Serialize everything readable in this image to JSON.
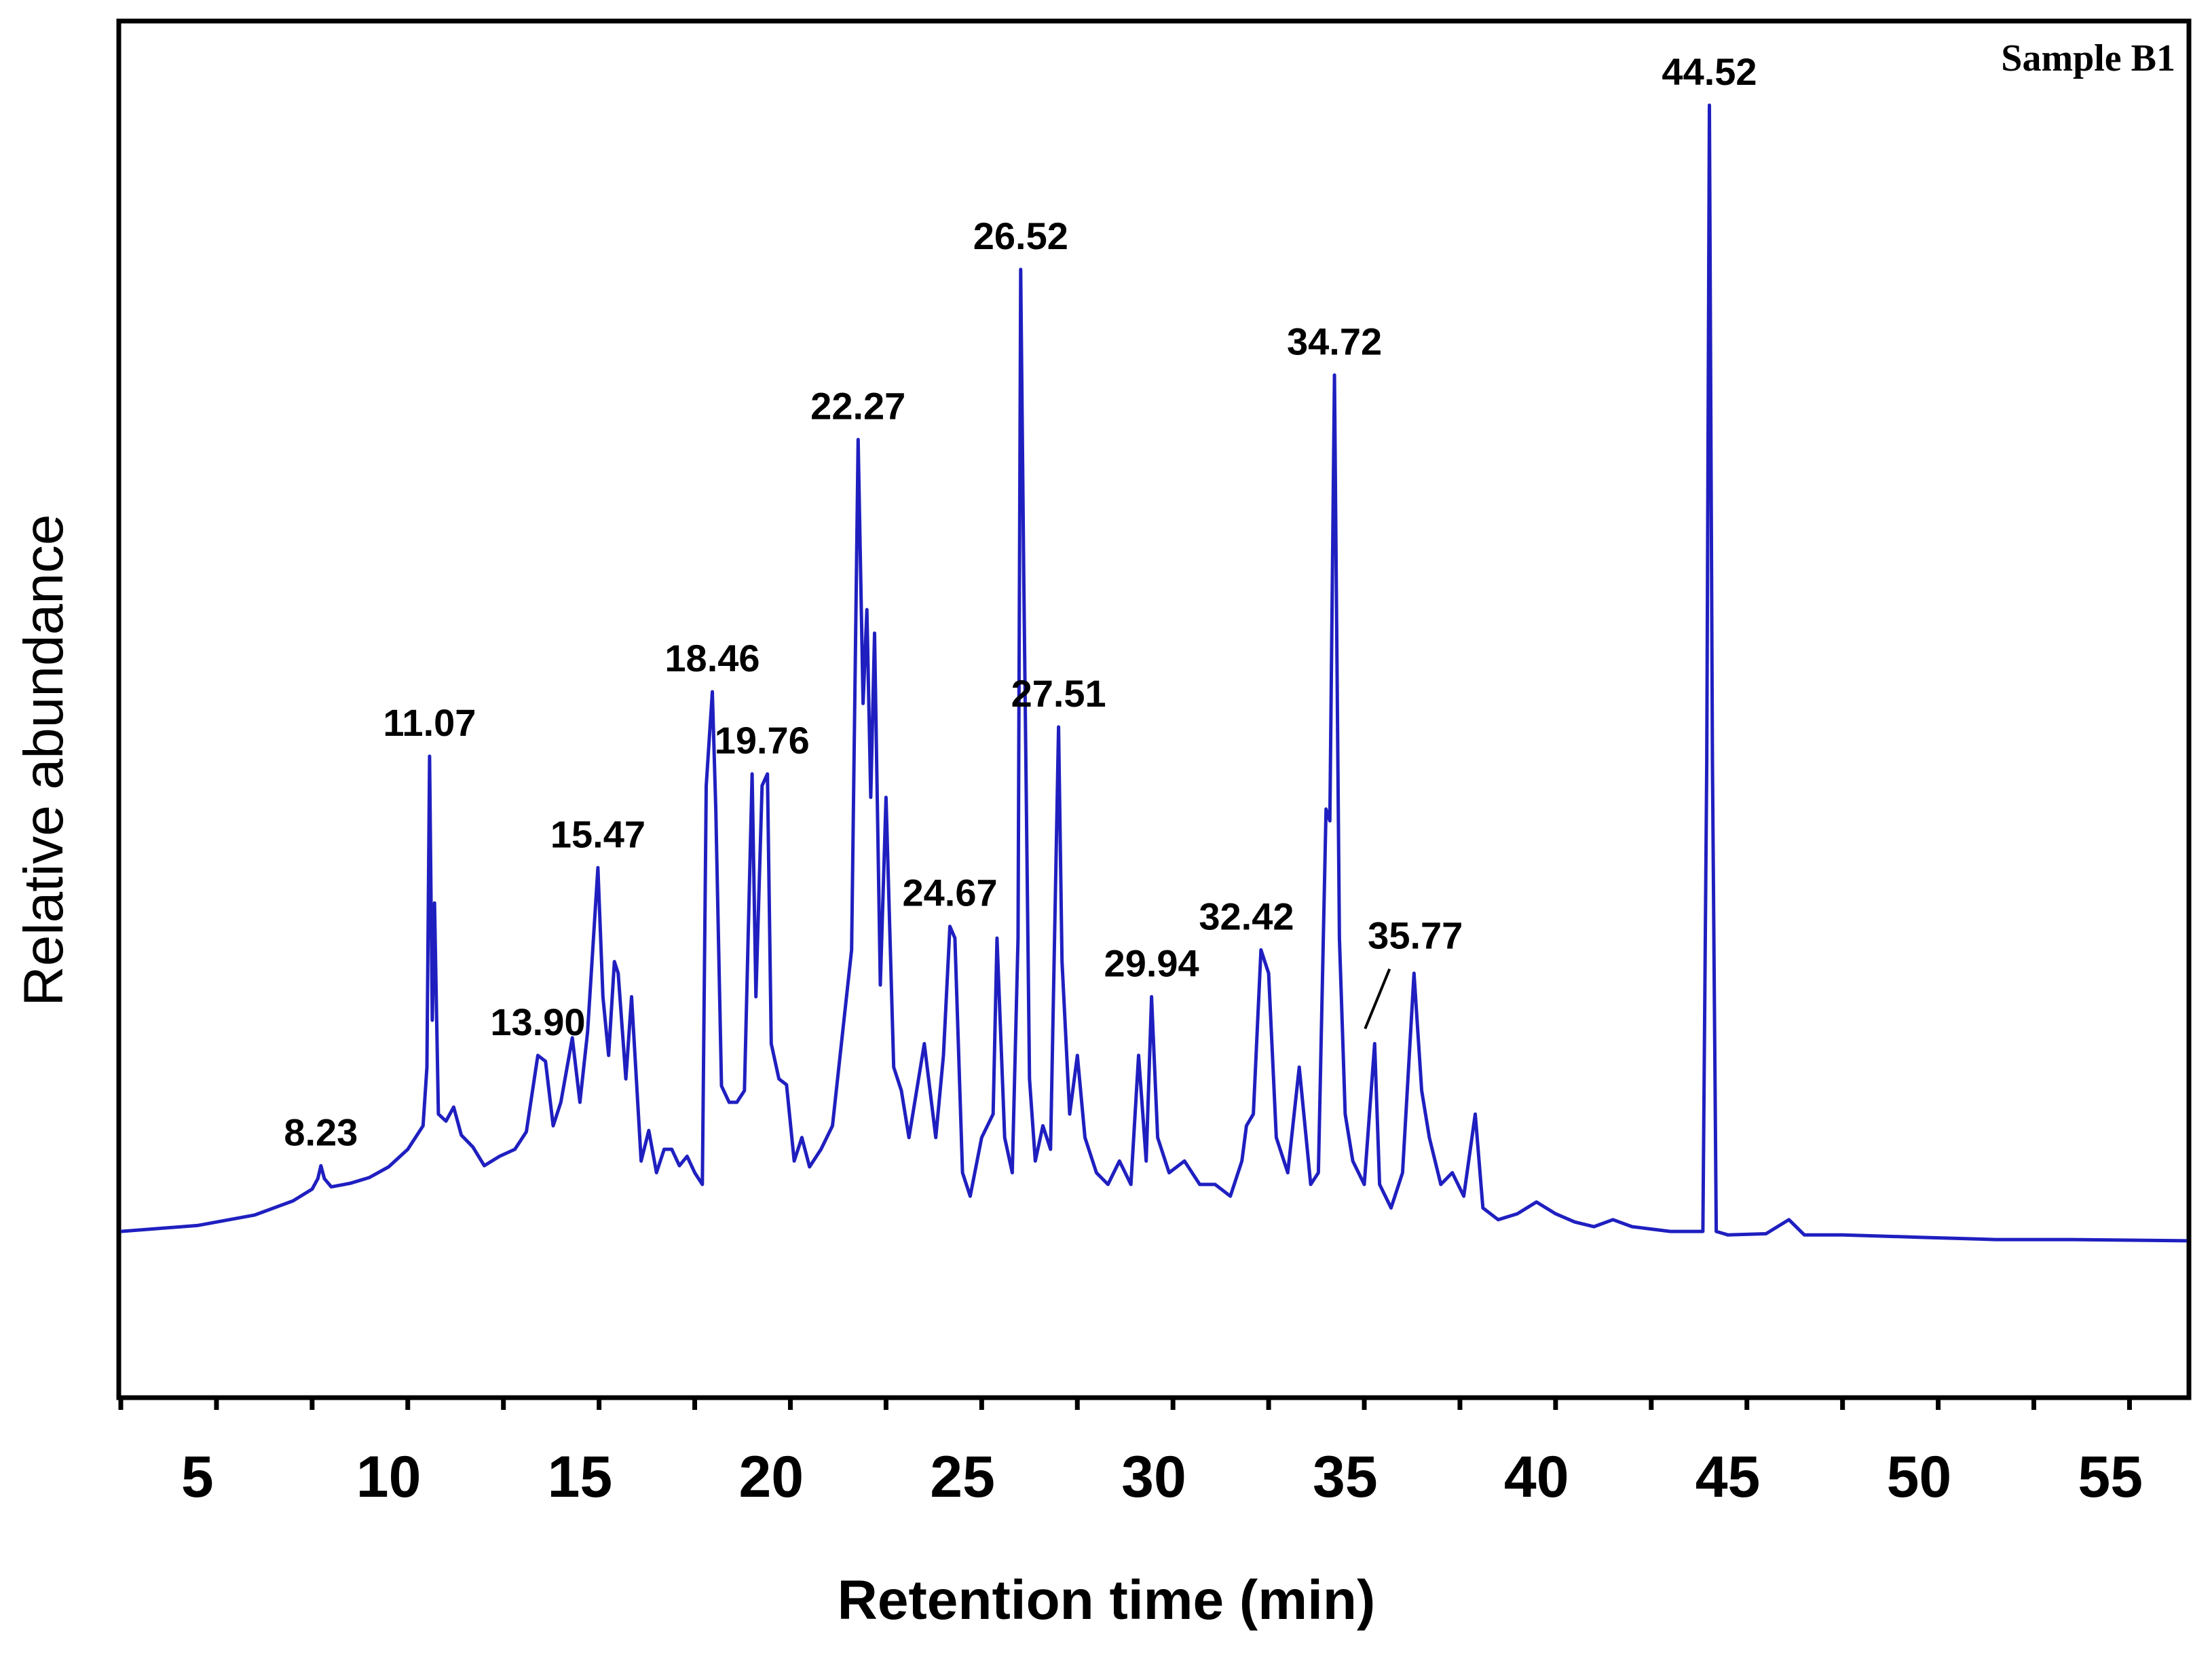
{
  "chart_data": {
    "type": "line",
    "title": "Sample B1",
    "xlabel": "Retention time (min)",
    "ylabel": "Relative abundance",
    "xlim": [
      3,
      57
    ],
    "ylim": [
      -0.14,
      1.03
    ],
    "x_ticks": [
      5,
      10,
      15,
      20,
      25,
      30,
      35,
      40,
      45,
      50,
      55
    ],
    "x_tick_labels": [
      "5",
      "10",
      "15",
      "20",
      "25",
      "30",
      "35",
      "40",
      "45",
      "50",
      "55"
    ],
    "line_color": "#1f1fc0",
    "series": [
      {
        "name": "Sample B1",
        "x": [
          3.0,
          5.0,
          6.5,
          7.5,
          8.0,
          8.15,
          8.23,
          8.32,
          8.5,
          9.0,
          9.5,
          10.0,
          10.5,
          10.9,
          11.0,
          11.07,
          11.14,
          11.2,
          11.3,
          11.5,
          11.7,
          11.9,
          12.2,
          12.5,
          12.9,
          13.3,
          13.6,
          13.9,
          14.1,
          14.3,
          14.5,
          14.8,
          15.0,
          15.2,
          15.47,
          15.6,
          15.75,
          15.9,
          16.0,
          16.2,
          16.35,
          16.6,
          16.8,
          17.0,
          17.2,
          17.4,
          17.6,
          17.8,
          18.0,
          18.2,
          18.3,
          18.46,
          18.55,
          18.7,
          18.9,
          19.1,
          19.3,
          19.5,
          19.6,
          19.76,
          19.9,
          20.0,
          20.2,
          20.4,
          20.6,
          20.8,
          21.0,
          21.3,
          21.6,
          21.9,
          22.1,
          22.27,
          22.4,
          22.5,
          22.6,
          22.7,
          22.85,
          23.0,
          23.2,
          23.4,
          23.6,
          23.8,
          24.0,
          24.3,
          24.5,
          24.67,
          24.8,
          25.0,
          25.2,
          25.5,
          25.8,
          25.9,
          26.1,
          26.3,
          26.45,
          26.52,
          26.6,
          26.75,
          26.9,
          27.1,
          27.3,
          27.51,
          27.6,
          27.8,
          28.0,
          28.2,
          28.5,
          28.8,
          29.1,
          29.4,
          29.6,
          29.8,
          29.94,
          30.1,
          30.4,
          30.8,
          31.2,
          31.6,
          32.0,
          32.3,
          32.42,
          32.6,
          32.8,
          33.0,
          33.2,
          33.5,
          33.8,
          34.1,
          34.3,
          34.5,
          34.6,
          34.72,
          34.85,
          35.0,
          35.2,
          35.5,
          35.77,
          35.9,
          36.2,
          36.5,
          36.8,
          37.0,
          37.2,
          37.5,
          37.8,
          38.1,
          38.4,
          38.6,
          39.0,
          39.5,
          40.0,
          40.5,
          41.0,
          41.5,
          42.0,
          42.5,
          43.0,
          43.5,
          44.0,
          44.35,
          44.45,
          44.52,
          44.6,
          44.7,
          45.0,
          46.0,
          46.6,
          47.0,
          48.0,
          50.0,
          52.0,
          54.0,
          57.0
        ],
        "y": [
          0.0,
          0.005,
          0.014,
          0.026,
          0.036,
          0.045,
          0.056,
          0.045,
          0.038,
          0.041,
          0.046,
          0.055,
          0.07,
          0.09,
          0.14,
          0.405,
          0.18,
          0.28,
          0.1,
          0.094,
          0.106,
          0.082,
          0.072,
          0.056,
          0.064,
          0.07,
          0.085,
          0.15,
          0.145,
          0.09,
          0.11,
          0.165,
          0.11,
          0.17,
          0.31,
          0.2,
          0.15,
          0.23,
          0.22,
          0.13,
          0.2,
          0.06,
          0.086,
          0.05,
          0.07,
          0.07,
          0.056,
          0.064,
          0.05,
          0.04,
          0.38,
          0.46,
          0.36,
          0.124,
          0.11,
          0.11,
          0.12,
          0.39,
          0.2,
          0.38,
          0.39,
          0.16,
          0.13,
          0.125,
          0.06,
          0.08,
          0.055,
          0.07,
          0.09,
          0.18,
          0.24,
          0.675,
          0.45,
          0.53,
          0.37,
          0.51,
          0.21,
          0.37,
          0.14,
          0.12,
          0.08,
          0.12,
          0.16,
          0.08,
          0.15,
          0.26,
          0.25,
          0.05,
          0.03,
          0.08,
          0.1,
          0.25,
          0.08,
          0.05,
          0.25,
          0.82,
          0.56,
          0.13,
          0.06,
          0.09,
          0.07,
          0.43,
          0.23,
          0.1,
          0.15,
          0.08,
          0.05,
          0.04,
          0.06,
          0.04,
          0.15,
          0.06,
          0.2,
          0.08,
          0.05,
          0.06,
          0.04,
          0.04,
          0.03,
          0.06,
          0.09,
          0.1,
          0.24,
          0.22,
          0.08,
          0.05,
          0.14,
          0.04,
          0.05,
          0.36,
          0.35,
          0.73,
          0.25,
          0.1,
          0.06,
          0.04,
          0.16,
          0.04,
          0.02,
          0.05,
          0.22,
          0.12,
          0.08,
          0.04,
          0.05,
          0.03,
          0.1,
          0.02,
          0.01,
          0.015,
          0.025,
          0.015,
          0.008,
          0.004,
          0.01,
          0.004,
          0.002,
          0.0,
          0.0,
          0.0,
          0.4,
          0.96,
          0.4,
          0.0,
          -0.003,
          -0.002,
          0.01,
          -0.003,
          -0.003,
          -0.005,
          -0.007,
          -0.007,
          -0.008
        ]
      }
    ],
    "peak_labels": [
      {
        "x": 8.23,
        "y": 0.056,
        "text": "8.23"
      },
      {
        "x": 11.07,
        "y": 0.405,
        "text": "11.07"
      },
      {
        "x": 13.9,
        "y": 0.15,
        "text": "13.90"
      },
      {
        "x": 15.47,
        "y": 0.31,
        "text": "15.47"
      },
      {
        "x": 18.46,
        "y": 0.46,
        "text": "18.46"
      },
      {
        "x": 19.76,
        "y": 0.39,
        "text": "19.76"
      },
      {
        "x": 22.27,
        "y": 0.675,
        "text": "22.27"
      },
      {
        "x": 24.67,
        "y": 0.26,
        "text": "24.67"
      },
      {
        "x": 26.52,
        "y": 0.82,
        "text": "26.52"
      },
      {
        "x": 27.51,
        "y": 0.43,
        "text": "27.51"
      },
      {
        "x": 29.94,
        "y": 0.2,
        "text": "29.94"
      },
      {
        "x": 32.42,
        "y": 0.24,
        "text": "32.42"
      },
      {
        "x": 34.72,
        "y": 0.73,
        "text": "34.72"
      },
      {
        "x": 35.77,
        "y": 0.16,
        "text": "35.77"
      },
      {
        "x": 44.52,
        "y": 0.96,
        "text": "44.52"
      }
    ],
    "legend": "top-right",
    "grid": false
  }
}
